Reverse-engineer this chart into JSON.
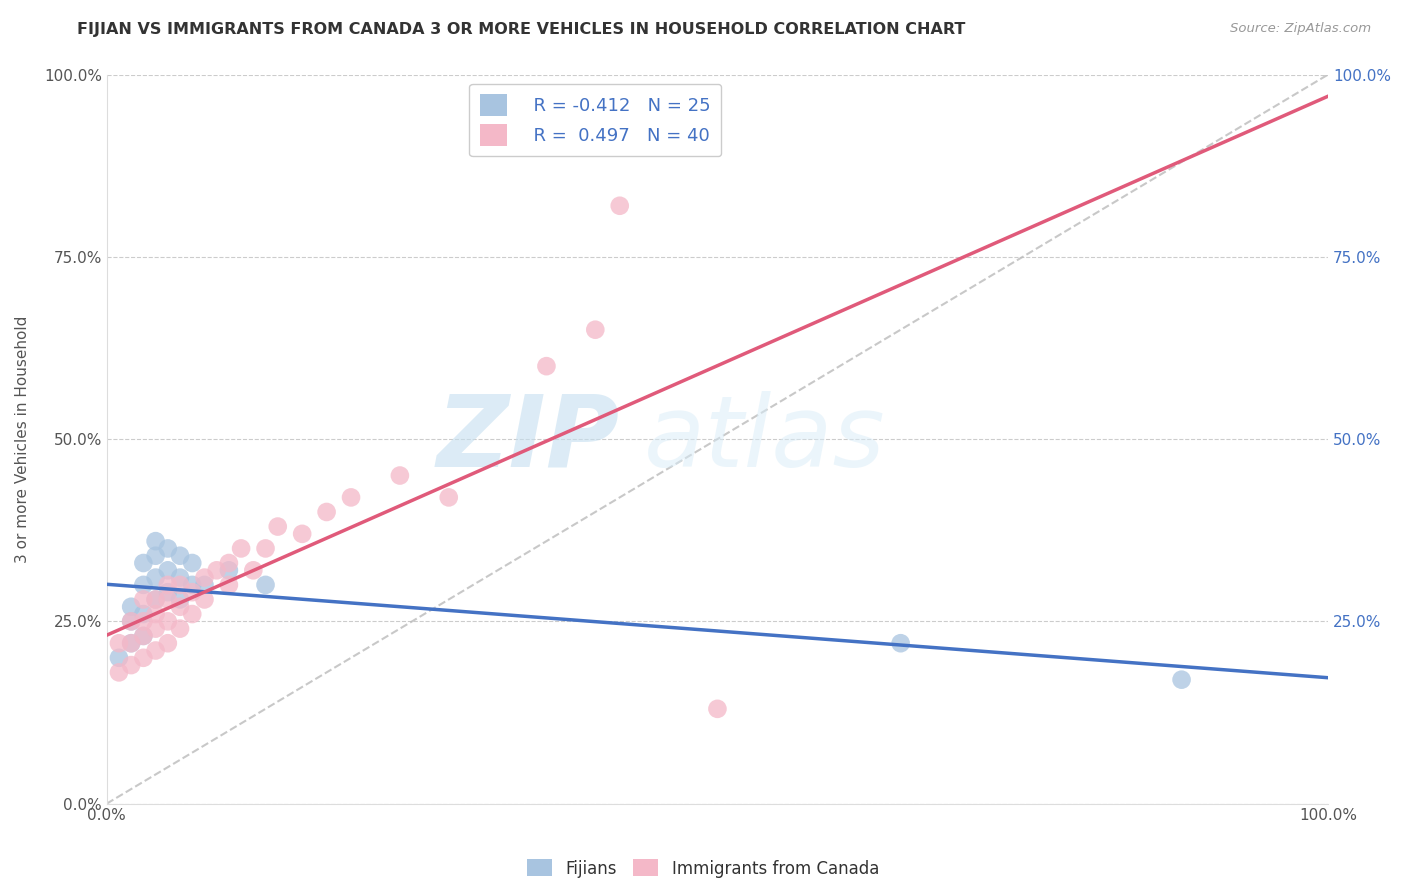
{
  "title": "FIJIAN VS IMMIGRANTS FROM CANADA 3 OR MORE VEHICLES IN HOUSEHOLD CORRELATION CHART",
  "source": "Source: ZipAtlas.com",
  "ylabel": "3 or more Vehicles in Household",
  "xlim": [
    0,
    1.0
  ],
  "ylim": [
    0,
    1.0
  ],
  "ytick_values": [
    0.0,
    0.25,
    0.5,
    0.75,
    1.0
  ],
  "right_ytick_values": [
    0.25,
    0.5,
    0.75,
    1.0
  ],
  "fijian_color": "#a8c4e0",
  "canada_color": "#f4b8c8",
  "fijian_line_color": "#4472c4",
  "canada_line_color": "#e05a7a",
  "fijian_R": -0.412,
  "fijian_N": 25,
  "canada_R": 0.497,
  "canada_N": 40,
  "watermark_zip": "ZIP",
  "watermark_atlas": "atlas",
  "background_color": "#ffffff",
  "grid_color": "#cccccc",
  "fijian_x": [
    0.01,
    0.02,
    0.02,
    0.02,
    0.03,
    0.03,
    0.03,
    0.03,
    0.04,
    0.04,
    0.04,
    0.04,
    0.05,
    0.05,
    0.05,
    0.06,
    0.06,
    0.06,
    0.07,
    0.07,
    0.08,
    0.1,
    0.13,
    0.65,
    0.88
  ],
  "fijian_y": [
    0.2,
    0.22,
    0.25,
    0.27,
    0.23,
    0.26,
    0.3,
    0.33,
    0.28,
    0.31,
    0.34,
    0.36,
    0.29,
    0.32,
    0.35,
    0.28,
    0.31,
    0.34,
    0.3,
    0.33,
    0.3,
    0.32,
    0.3,
    0.22,
    0.17
  ],
  "canada_x": [
    0.01,
    0.01,
    0.02,
    0.02,
    0.02,
    0.03,
    0.03,
    0.03,
    0.03,
    0.04,
    0.04,
    0.04,
    0.04,
    0.05,
    0.05,
    0.05,
    0.05,
    0.06,
    0.06,
    0.06,
    0.07,
    0.07,
    0.08,
    0.08,
    0.09,
    0.1,
    0.1,
    0.11,
    0.12,
    0.13,
    0.14,
    0.16,
    0.18,
    0.2,
    0.24,
    0.28,
    0.36,
    0.4,
    0.42,
    0.5
  ],
  "canada_y": [
    0.18,
    0.22,
    0.19,
    0.22,
    0.25,
    0.2,
    0.23,
    0.25,
    0.28,
    0.21,
    0.24,
    0.26,
    0.28,
    0.22,
    0.25,
    0.28,
    0.3,
    0.24,
    0.27,
    0.3,
    0.26,
    0.29,
    0.28,
    0.31,
    0.32,
    0.3,
    0.33,
    0.35,
    0.32,
    0.35,
    0.38,
    0.37,
    0.4,
    0.42,
    0.45,
    0.42,
    0.6,
    0.65,
    0.82,
    0.13
  ]
}
